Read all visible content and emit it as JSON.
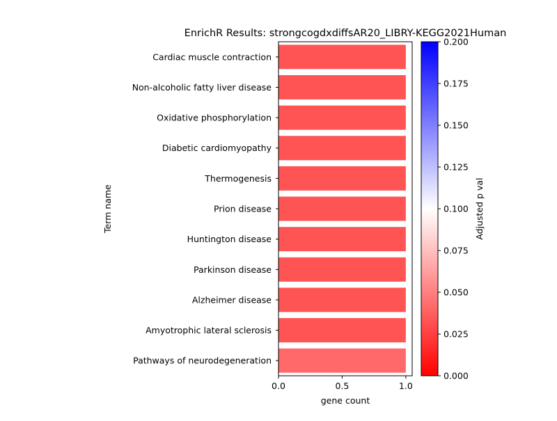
{
  "chart_data": {
    "type": "bar",
    "orientation": "horizontal",
    "title": "EnrichR Results: strongcogdxdiffsAR20_LIBRY-KEGG2021Human",
    "xlabel": "gene count",
    "ylabel": "Term name",
    "xlim": [
      0.0,
      1.05
    ],
    "xticks": [
      "0.0",
      "0.5",
      "1.0"
    ],
    "grid": false,
    "categories": [
      "Cardiac muscle contraction",
      "Non-alcoholic fatty liver disease",
      "Oxidative phosphorylation",
      "Diabetic cardiomyopathy",
      "Thermogenesis",
      "Prion disease",
      "Huntington disease",
      "Parkinson disease",
      "Alzheimer disease",
      "Amyotrophic lateral sclerosis",
      "Pathways of neurodegeneration"
    ],
    "values": [
      1,
      1,
      1,
      1,
      1,
      1,
      1,
      1,
      1,
      1,
      1
    ],
    "adjusted_p": [
      0.033,
      0.033,
      0.033,
      0.033,
      0.033,
      0.033,
      0.033,
      0.033,
      0.033,
      0.033,
      0.041
    ],
    "colorbar": {
      "label": "Adjusted p val",
      "range": [
        0.0,
        0.2
      ],
      "ticks": [
        "0.000",
        "0.025",
        "0.050",
        "0.075",
        "0.100",
        "0.125",
        "0.150",
        "0.175",
        "0.200"
      ],
      "colormap": "bwr",
      "colors": {
        "low": "#ff0000",
        "mid": "#ffffff",
        "high": "#0000ff"
      }
    }
  }
}
